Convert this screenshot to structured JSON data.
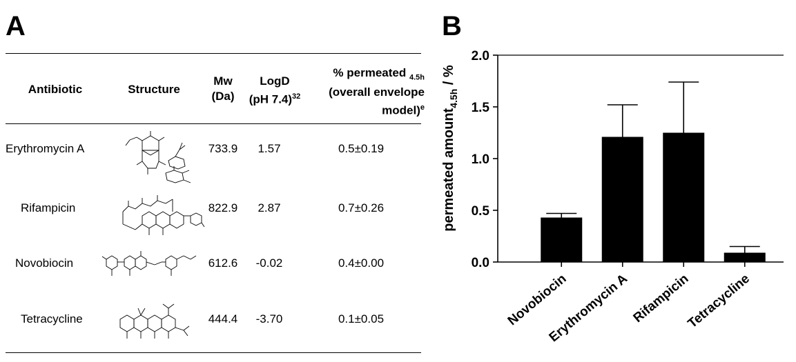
{
  "panel_a": {
    "letter": "A",
    "headers": {
      "antibiotic": "Antibiotic",
      "structure": "Structure",
      "mw_line1": "Mw",
      "mw_line2": "(Da)",
      "logd_line1": "LogD",
      "logd_line2": "(pH 7.4)",
      "logd_sup": "32",
      "perm_line1": "% permeated",
      "perm_sub": "4.5h",
      "perm_line2": "(overall envelope",
      "perm_line3": "model)",
      "perm_sup": "e"
    },
    "rows": [
      {
        "name": "Erythromycin A",
        "mw": "733.9",
        "logd": "1.57",
        "permeated": "0.5±0.19",
        "structure_icon": "erythromycin-structure-icon"
      },
      {
        "name": "Rifampicin",
        "mw": "822.9",
        "logd": "2.87",
        "permeated": "0.7±0.26",
        "structure_icon": "rifampicin-structure-icon"
      },
      {
        "name": "Novobiocin",
        "mw": "612.6",
        "logd": "-0.02",
        "permeated": "0.4±0.00",
        "structure_icon": "novobiocin-structure-icon"
      },
      {
        "name": "Tetracycline",
        "mw": "444.4",
        "logd": "-3.70",
        "permeated": "0.1±0.05",
        "structure_icon": "tetracycline-structure-icon"
      }
    ]
  },
  "panel_b": {
    "letter": "B"
  },
  "chart_data": {
    "type": "bar",
    "ylabel_main": "permeated amount",
    "ylabel_sub": "4.5h",
    "ylabel_unit": " / %",
    "xlabel": "",
    "categories": [
      "Novobiocin",
      "Erythromycin A",
      "Rifampicin",
      "Tetracycline"
    ],
    "values": [
      0.43,
      1.21,
      1.25,
      0.09
    ],
    "errors": [
      0.04,
      0.31,
      0.49,
      0.06
    ],
    "ylim": [
      0.0,
      2.0
    ],
    "yticks": [
      "0.0",
      "0.5",
      "1.0",
      "1.5",
      "2.0"
    ],
    "ytick_values": [
      0.0,
      0.5,
      1.0,
      1.5,
      2.0
    ],
    "grid": false,
    "bar_color": "#000000"
  }
}
